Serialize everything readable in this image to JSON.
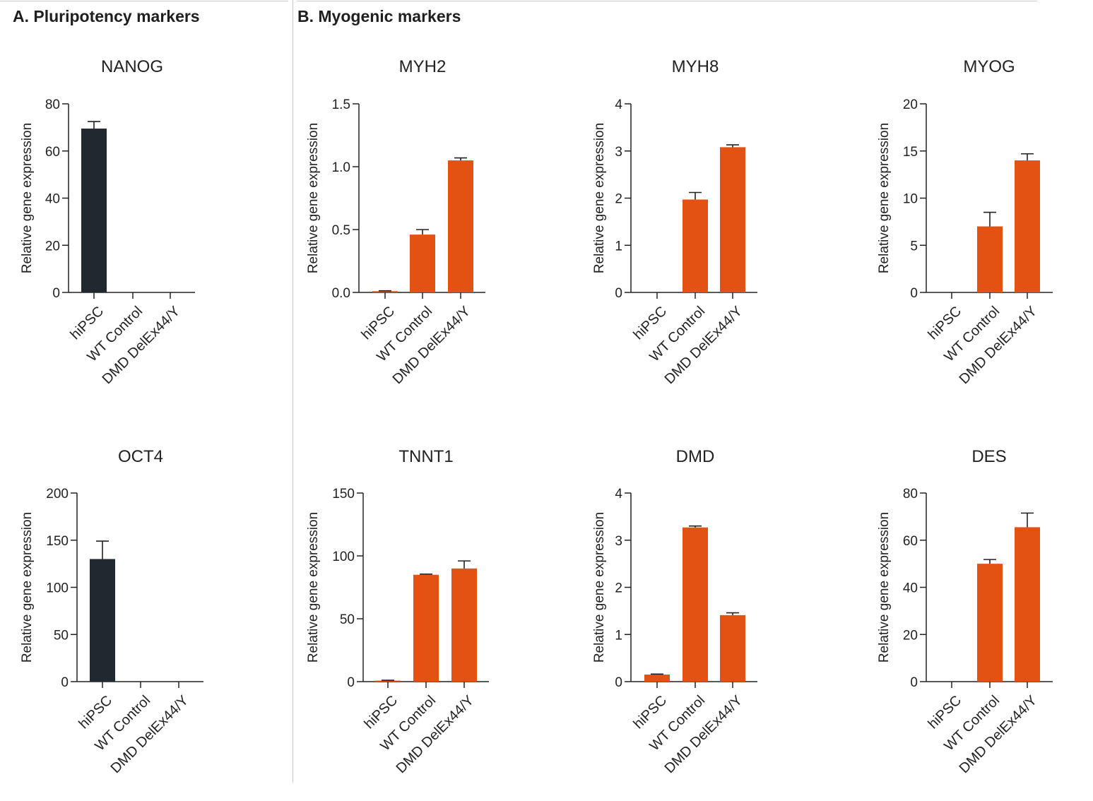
{
  "sections": {
    "a_title": "A. Pluripotency markers",
    "b_title": "B. Myogenic markers"
  },
  "colors": {
    "pluripotency": "#212830",
    "myogenic": "#e35212",
    "axis": "#222222"
  },
  "chart_data": [
    {
      "type": "bar",
      "title": "NANOG",
      "categories": [
        "hiPSC",
        "WT Control",
        "DMD DelEx44/Y"
      ],
      "values": [
        69.5,
        0,
        0
      ],
      "errors": [
        3,
        0,
        0
      ],
      "ylabel": "Relative gene expression",
      "ylim": [
        0,
        80
      ],
      "yticks": [
        "0",
        "20",
        "40",
        "60",
        "80"
      ],
      "color": "#212830"
    },
    {
      "type": "bar",
      "title": "MYH2",
      "categories": [
        "hiPSC",
        "WT Control",
        "DMD DelEx44/Y"
      ],
      "values": [
        0.01,
        0.46,
        1.05
      ],
      "errors": [
        0.003,
        0.04,
        0.02
      ],
      "ylabel": "Relative gene expression",
      "ylim": [
        0,
        1.5
      ],
      "yticks": [
        "0.0",
        "0.5",
        "1.0",
        "1.5"
      ],
      "color": "#e35212"
    },
    {
      "type": "bar",
      "title": "MYH8",
      "categories": [
        "hiPSC",
        "WT Control",
        "DMD DelEx44/Y"
      ],
      "values": [
        0,
        1.97,
        3.08
      ],
      "errors": [
        0,
        0.15,
        0.05
      ],
      "ylabel": "Relative gene expression",
      "ylim": [
        0,
        4
      ],
      "yticks": [
        "0",
        "1",
        "2",
        "3",
        "4"
      ],
      "color": "#e35212"
    },
    {
      "type": "bar",
      "title": "MYOG",
      "categories": [
        "hiPSC",
        "WT Control",
        "DMD DelEx44/Y"
      ],
      "values": [
        0,
        7,
        14
      ],
      "errors": [
        0,
        1.5,
        0.7
      ],
      "ylabel": "Relative gene expression",
      "ylim": [
        0,
        20
      ],
      "yticks": [
        "0",
        "5",
        "10",
        "15",
        "20"
      ],
      "color": "#e35212"
    },
    {
      "type": "bar",
      "title": "OCT4",
      "categories": [
        "hiPSC",
        "WT Control",
        "DMD DelEx44/Y"
      ],
      "values": [
        130,
        0,
        0
      ],
      "errors": [
        19,
        0,
        0
      ],
      "ylabel": "Relative gene expression",
      "ylim": [
        0,
        200
      ],
      "yticks": [
        "0",
        "50",
        "100",
        "150",
        "200"
      ],
      "color": "#212830"
    },
    {
      "type": "bar",
      "title": "TNNT1",
      "categories": [
        "hiPSC",
        "WT Control",
        "DMD DelEx44/Y"
      ],
      "values": [
        0.8,
        85,
        90
      ],
      "errors": [
        0.3,
        0.5,
        6
      ],
      "ylabel": "Relative gene expression",
      "ylim": [
        0,
        150
      ],
      "yticks": [
        "0",
        "50",
        "100",
        "150"
      ],
      "color": "#e35212"
    },
    {
      "type": "bar",
      "title": "DMD",
      "categories": [
        "hiPSC",
        "WT Control",
        "DMD DelEx44/Y"
      ],
      "values": [
        0.15,
        3.27,
        1.41
      ],
      "errors": [
        0.01,
        0.03,
        0.05
      ],
      "ylabel": "Relative gene expression",
      "ylim": [
        0,
        4
      ],
      "yticks": [
        "0",
        "1",
        "2",
        "3",
        "4"
      ],
      "color": "#e35212"
    },
    {
      "type": "bar",
      "title": "DES",
      "categories": [
        "hiPSC",
        "WT Control",
        "DMD DelEx44/Y"
      ],
      "values": [
        0,
        50,
        65.5
      ],
      "errors": [
        0,
        1.8,
        6
      ],
      "ylabel": "Relative gene expression",
      "ylim": [
        0,
        80
      ],
      "yticks": [
        "0",
        "20",
        "40",
        "60",
        "80"
      ],
      "color": "#e35212"
    }
  ]
}
